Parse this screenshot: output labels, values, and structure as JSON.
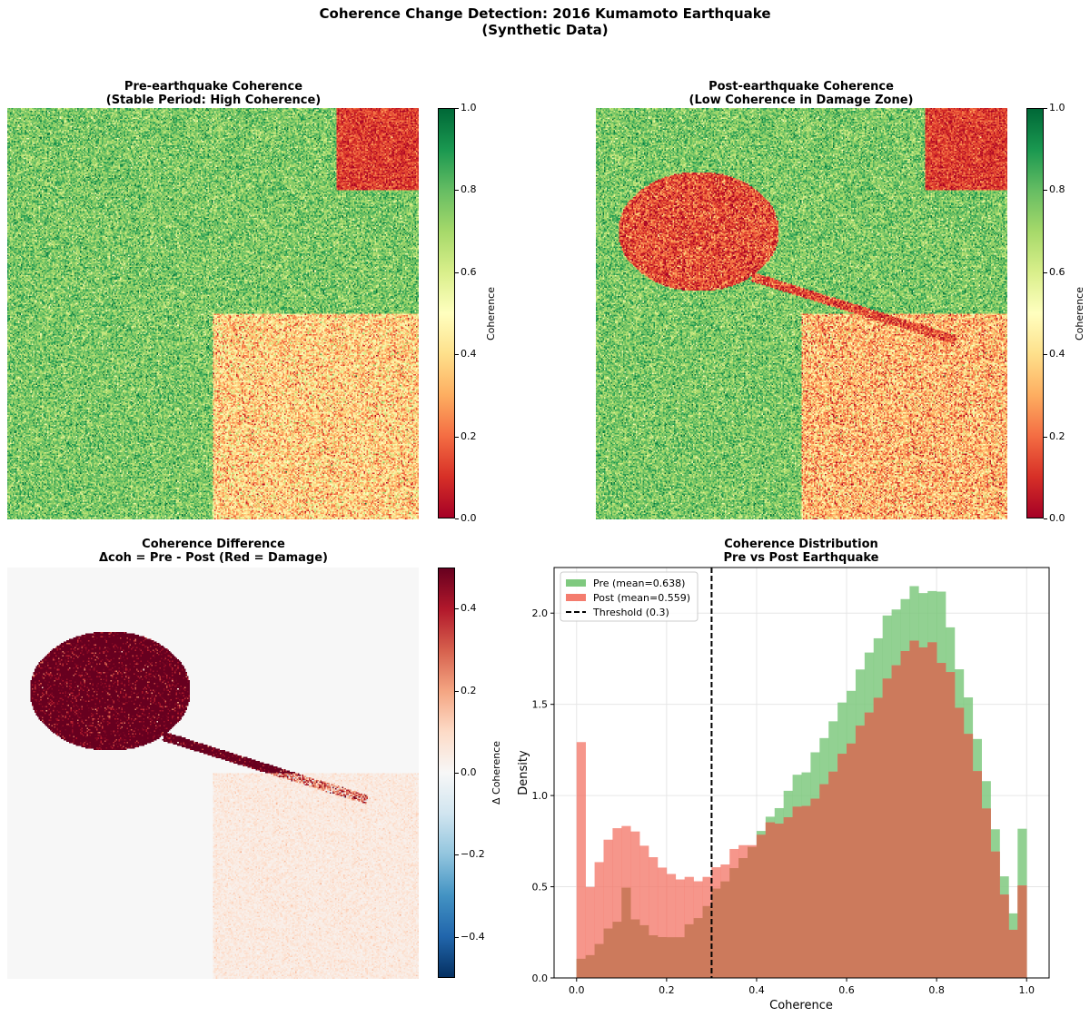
{
  "suptitle": [
    "Coherence Change Detection: 2016 Kumamoto Earthquake",
    "(Synthetic Data)"
  ],
  "colors": {
    "pre_hist": "#7fc97f",
    "post_hist": "#f47c6e",
    "overlap": "#cc7a5c",
    "threshold": "#000000",
    "diff_background": "#f5f5f5"
  },
  "chart_data": [
    {
      "type": "heatmap",
      "title": [
        "Pre-earthquake Coherence",
        "(Stable Period: High Coherence)"
      ],
      "colormap": "RdYlGn",
      "colorbar": {
        "label": "Coherence",
        "range": [
          0,
          1
        ],
        "ticks": [
          "0.0",
          "0.2",
          "0.4",
          "0.6",
          "0.8",
          "1.0"
        ],
        "tick_values": [
          0,
          0.2,
          0.4,
          0.6,
          0.8,
          1.0
        ]
      },
      "axes": "off"
    },
    {
      "type": "heatmap",
      "title": [
        "Post-earthquake Coherence",
        "(Low Coherence in Damage Zone)"
      ],
      "colormap": "RdYlGn",
      "colorbar": {
        "label": "Coherence",
        "range": [
          0,
          1
        ],
        "ticks": [
          "0.0",
          "0.2",
          "0.4",
          "0.6",
          "0.8",
          "1.0"
        ],
        "tick_values": [
          0,
          0.2,
          0.4,
          0.6,
          0.8,
          1.0
        ]
      },
      "axes": "off"
    },
    {
      "type": "heatmap",
      "title": [
        "Coherence Difference",
        "Δcoh = Pre - Post (Red = Damage)"
      ],
      "colormap": "RdBu_r",
      "colorbar": {
        "label": "Δ Coherence",
        "range": [
          -0.5,
          0.5
        ],
        "ticks": [
          "−0.4",
          "−0.2",
          "0.0",
          "0.2",
          "0.4"
        ],
        "tick_values": [
          -0.4,
          -0.2,
          0,
          0.2,
          0.4
        ]
      },
      "axes": "off"
    },
    {
      "type": "bar",
      "subtype": "histogram",
      "title": [
        "Coherence Distribution",
        "Pre vs Post Earthquake"
      ],
      "xlabel": "Coherence",
      "ylabel": "Density",
      "xlim": [
        -0.05,
        1.05
      ],
      "ylim": [
        0,
        2.25
      ],
      "xticks": [
        "0.0",
        "0.2",
        "0.4",
        "0.6",
        "0.8",
        "1.0"
      ],
      "xtick_values": [
        0,
        0.2,
        0.4,
        0.6,
        0.8,
        1.0
      ],
      "yticks": [
        "0.0",
        "0.5",
        "1.0",
        "1.5",
        "2.0"
      ],
      "ytick_values": [
        0,
        0.5,
        1.0,
        1.5,
        2.0
      ],
      "grid": true,
      "legend_position": "top-left",
      "bin_range": [
        0,
        1
      ],
      "bin_width": 0.02,
      "series": [
        {
          "name": "Pre (mean=0.638)",
          "values": [
            0.105,
            0.125,
            0.186,
            0.271,
            0.308,
            0.495,
            0.321,
            0.289,
            0.234,
            0.224,
            0.223,
            0.223,
            0.294,
            0.328,
            0.394,
            0.49,
            0.529,
            0.602,
            0.657,
            0.718,
            0.806,
            0.884,
            0.931,
            1.026,
            1.114,
            1.127,
            1.237,
            1.315,
            1.407,
            1.51,
            1.574,
            1.691,
            1.784,
            1.862,
            1.987,
            2.02,
            2.077,
            2.148,
            2.11,
            2.121,
            2.118,
            1.922,
            1.692,
            1.538,
            1.31,
            1.079,
            0.815,
            0.557,
            0.354,
            0.818
          ]
        },
        {
          "name": "Post (mean=0.559)",
          "values": [
            1.293,
            0.499,
            0.635,
            0.758,
            0.821,
            0.833,
            0.803,
            0.725,
            0.662,
            0.605,
            0.57,
            0.54,
            0.554,
            0.53,
            0.554,
            0.607,
            0.622,
            0.707,
            0.728,
            0.728,
            0.785,
            0.853,
            0.846,
            0.881,
            0.939,
            0.943,
            0.983,
            1.062,
            1.131,
            1.229,
            1.285,
            1.383,
            1.455,
            1.536,
            1.641,
            1.714,
            1.792,
            1.849,
            1.812,
            1.84,
            1.727,
            1.677,
            1.481,
            1.338,
            1.134,
            0.929,
            0.693,
            0.457,
            0.264,
            0.507
          ]
        }
      ],
      "threshold": {
        "name": "Threshold (0.3)",
        "x": 0.3
      }
    }
  ]
}
